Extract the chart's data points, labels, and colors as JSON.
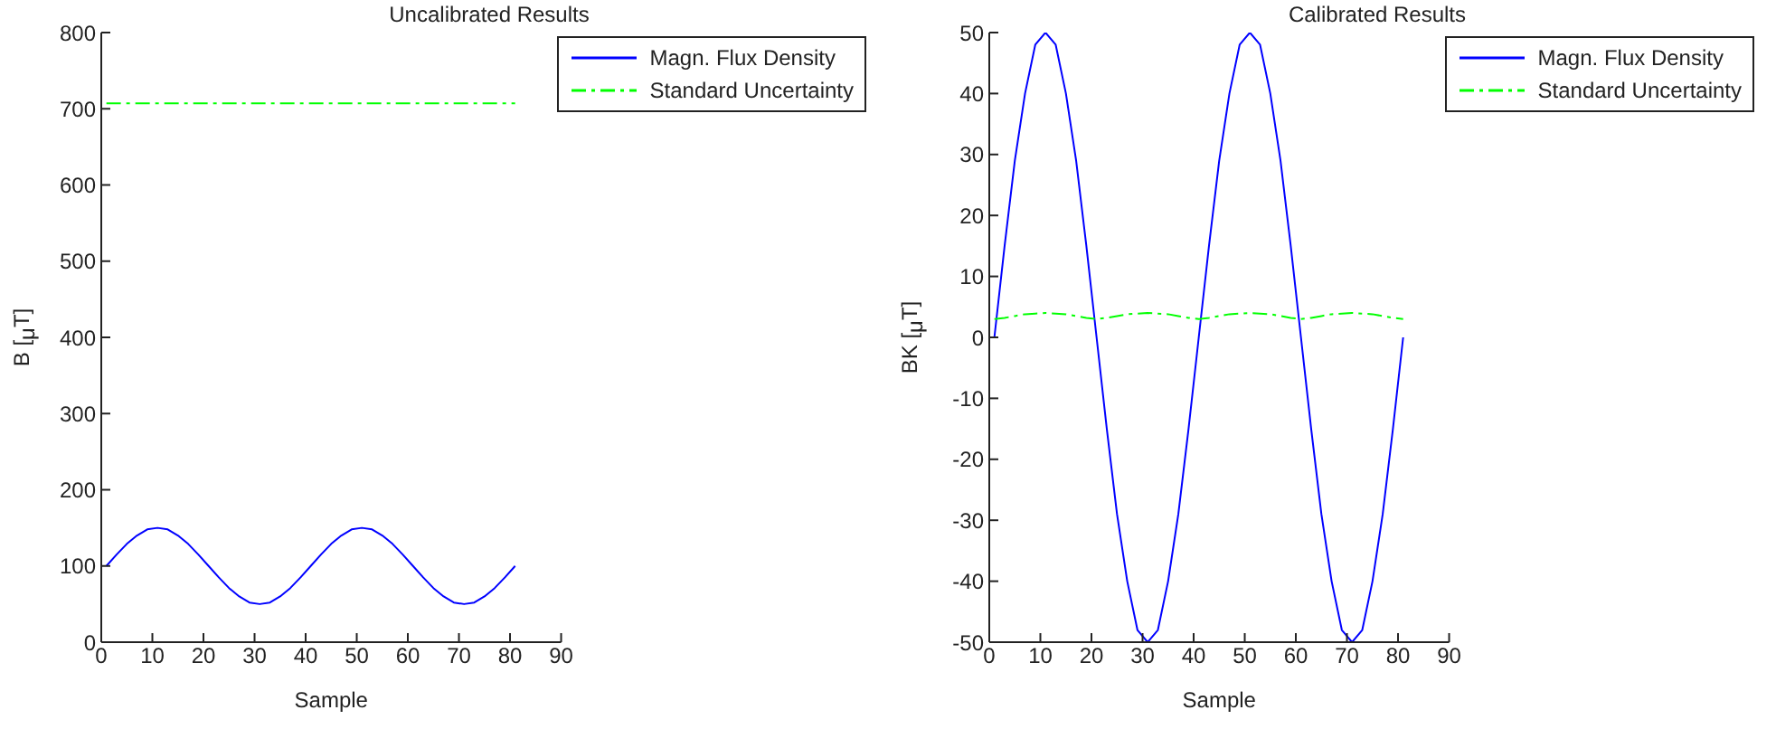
{
  "chart_data": [
    {
      "type": "line",
      "title": "Uncalibrated Results",
      "xlabel": "Sample",
      "ylabel": "B [$_{μ}$T]",
      "xlim": [
        0,
        90
      ],
      "xticks": [
        0,
        10,
        20,
        30,
        40,
        50,
        60,
        70,
        80,
        90
      ],
      "ylim": [
        0,
        800
      ],
      "yticks": [
        0,
        100,
        200,
        300,
        400,
        500,
        600,
        700,
        800
      ],
      "grid": false,
      "legend": "top right",
      "series": [
        {
          "name": "Magn. Flux Density",
          "color": "#0000ff",
          "line_style": "solid",
          "x": [
            1,
            3,
            5,
            7,
            9,
            11,
            13,
            15,
            17,
            19,
            21,
            23,
            25,
            27,
            29,
            31,
            33,
            35,
            37,
            39,
            41,
            43,
            45,
            47,
            49,
            51,
            53,
            55,
            57,
            59,
            61,
            63,
            65,
            67,
            69,
            71,
            73,
            75,
            77,
            79,
            81
          ],
          "values": [
            100,
            115,
            129,
            140,
            148,
            150,
            148,
            140,
            129,
            115,
            100,
            85,
            71,
            60,
            52,
            50,
            52,
            60,
            71,
            85,
            100,
            115,
            129,
            140,
            148,
            150,
            148,
            140,
            129,
            115,
            100,
            85,
            71,
            60,
            52,
            50,
            52,
            60,
            71,
            85,
            100
          ]
        },
        {
          "name": "Standard Uncertainty",
          "color": "#00ff00",
          "line_style": "dashed",
          "x": [
            1,
            81
          ],
          "values": [
            707,
            707
          ]
        }
      ]
    },
    {
      "type": "line",
      "title": "Calibrated Results",
      "xlabel": "Sample",
      "ylabel": "BK [$_{μ}$T]",
      "xlim": [
        0,
        90
      ],
      "xticks": [
        0,
        10,
        20,
        30,
        40,
        50,
        60,
        70,
        80,
        90
      ],
      "ylim": [
        -50,
        50
      ],
      "yticks": [
        -50,
        -40,
        -30,
        -20,
        -10,
        0,
        10,
        20,
        30,
        40,
        50
      ],
      "grid": false,
      "legend": "top right",
      "series": [
        {
          "name": "Magn. Flux Density",
          "color": "#0000ff",
          "line_style": "solid",
          "x": [
            1,
            3,
            5,
            7,
            9,
            11,
            13,
            15,
            17,
            19,
            21,
            23,
            25,
            27,
            29,
            31,
            33,
            35,
            37,
            39,
            41,
            43,
            45,
            47,
            49,
            51,
            53,
            55,
            57,
            59,
            61,
            63,
            65,
            67,
            69,
            71,
            73,
            75,
            77,
            79,
            81
          ],
          "values": [
            0,
            15,
            29,
            40,
            48,
            50,
            48,
            40,
            29,
            15,
            0,
            -15,
            -29,
            -40,
            -48,
            -50,
            -48,
            -40,
            -29,
            -15,
            0,
            15,
            29,
            40,
            48,
            50,
            48,
            40,
            29,
            15,
            0,
            -15,
            -29,
            -40,
            -48,
            -50,
            -48,
            -40,
            -29,
            -15,
            0
          ]
        },
        {
          "name": "Standard Uncertainty",
          "color": "#00ff00",
          "line_style": "dashed",
          "x": [
            1,
            3,
            5,
            7,
            9,
            11,
            13,
            15,
            17,
            19,
            21,
            23,
            25,
            27,
            29,
            31,
            33,
            35,
            37,
            39,
            41,
            43,
            45,
            47,
            49,
            51,
            53,
            55,
            57,
            59,
            61,
            63,
            65,
            67,
            69,
            71,
            73,
            75,
            77,
            79,
            81
          ],
          "values": [
            3.0,
            3.2,
            3.5,
            3.8,
            3.9,
            4.0,
            3.9,
            3.8,
            3.5,
            3.2,
            3.0,
            3.2,
            3.5,
            3.8,
            3.9,
            4.0,
            3.9,
            3.8,
            3.5,
            3.2,
            3.0,
            3.2,
            3.5,
            3.8,
            3.9,
            4.0,
            3.9,
            3.8,
            3.5,
            3.2,
            3.0,
            3.2,
            3.5,
            3.8,
            3.9,
            4.0,
            3.9,
            3.8,
            3.5,
            3.2,
            3.0
          ]
        }
      ]
    }
  ]
}
